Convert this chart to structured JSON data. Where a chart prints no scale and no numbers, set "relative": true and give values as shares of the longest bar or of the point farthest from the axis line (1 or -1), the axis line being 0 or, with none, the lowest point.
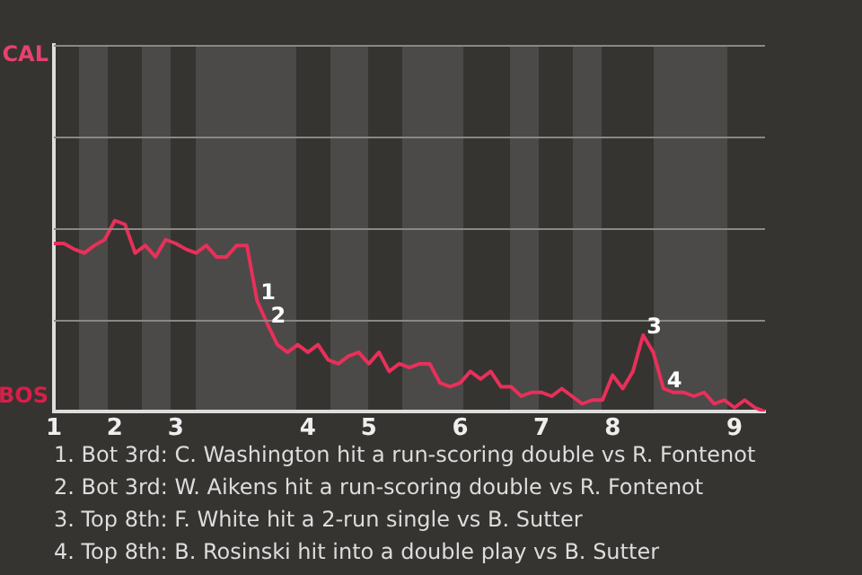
{
  "chart_data": {
    "type": "line",
    "relative": true,
    "categories": [
      "1",
      null,
      null,
      null,
      null,
      null,
      "2",
      null,
      null,
      null,
      null,
      null,
      "3",
      null,
      null,
      null,
      null,
      null,
      null,
      null,
      null,
      null,
      null,
      null,
      null,
      "4",
      null,
      null,
      null,
      null,
      null,
      "5",
      null,
      null,
      null,
      null,
      null,
      null,
      null,
      null,
      "6",
      null,
      null,
      null,
      null,
      null,
      null,
      null,
      "7",
      null,
      null,
      null,
      null,
      null,
      null,
      "8",
      null,
      null,
      null,
      null,
      null,
      null,
      null,
      null,
      null,
      null,
      null,
      "9",
      null,
      null,
      null
    ],
    "series": [
      {
        "color": "#e8305a",
        "values": [
          0.88,
          0.88,
          0.85,
          0.83,
          0.87,
          0.9,
          1,
          0.98,
          0.83,
          0.87,
          0.81,
          0.9,
          0.88,
          0.85,
          0.83,
          0.87,
          0.81,
          0.81,
          0.87,
          0.87,
          0.58,
          0.46,
          0.35,
          0.31,
          0.35,
          0.31,
          0.35,
          0.27,
          0.25,
          0.29,
          0.31,
          0.25,
          0.31,
          0.21,
          0.25,
          0.23,
          0.25,
          0.25,
          0.15,
          0.13,
          0.15,
          0.21,
          0.17,
          0.21,
          0.13,
          0.13,
          0.08,
          0.1,
          0.1,
          0.08,
          0.12,
          0.08,
          0.04,
          0.06,
          0.06,
          0.19,
          0.12,
          0.21,
          0.4,
          0.31,
          0.12,
          0.1,
          0.1,
          0.08,
          0.1,
          0.04,
          0.06,
          0.02,
          0.06,
          0.02,
          0
        ]
      }
    ],
    "ref_lines": [
      {
        "axis": "y",
        "value": 0.48,
        "color": "#8a8885"
      },
      {
        "axis": "y",
        "value": 0.96,
        "color": "#8a8885"
      },
      {
        "axis": "y",
        "value": 1.44,
        "color": "#8a8885"
      },
      {
        "axis": "y",
        "value": 1.92,
        "color": "#8a8885"
      }
    ],
    "marker": "none",
    "line_style": "solid",
    "legend": false,
    "annotations": [
      "CAL",
      "BOS",
      {
        "text": "1",
        "y": 0.58
      },
      {
        "text": "2",
        "y": 0.46
      },
      {
        "text": "3",
        "y": 0.4
      },
      {
        "text": "4",
        "y": 0.12
      },
      "1. Bot 3rd: C. Washington hit a run-scoring double vs R. Fontenot",
      "2. Bot 3rd: W. Aikens hit a run-scoring double vs R. Fontenot",
      "3. Top 8th: F. White hit a 2-run single vs B. Sutter",
      "4. Top 8th: B. Rosinski hit into a double play vs B. Sutter"
    ]
  }
}
